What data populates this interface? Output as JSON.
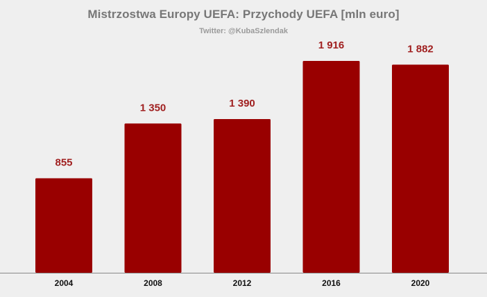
{
  "chart_data": {
    "type": "bar",
    "title": "Mistrzostwa Europy UEFA: Przychody UEFA [mln euro]",
    "subtitle": "Twitter: @KubaSzlendak",
    "categories": [
      "2004",
      "2008",
      "2012",
      "2016",
      "2020"
    ],
    "values": [
      855,
      1350,
      1390,
      1916,
      1882
    ],
    "value_labels": [
      "855",
      "1 350",
      "1 390",
      "1 916",
      "1 882"
    ],
    "xlabel": "",
    "ylabel": "",
    "ylim": [
      0,
      1916
    ],
    "grid": false,
    "legend": "none",
    "bar_color": "#990000",
    "label_color": "#a02020",
    "axis_color": "#888888"
  }
}
